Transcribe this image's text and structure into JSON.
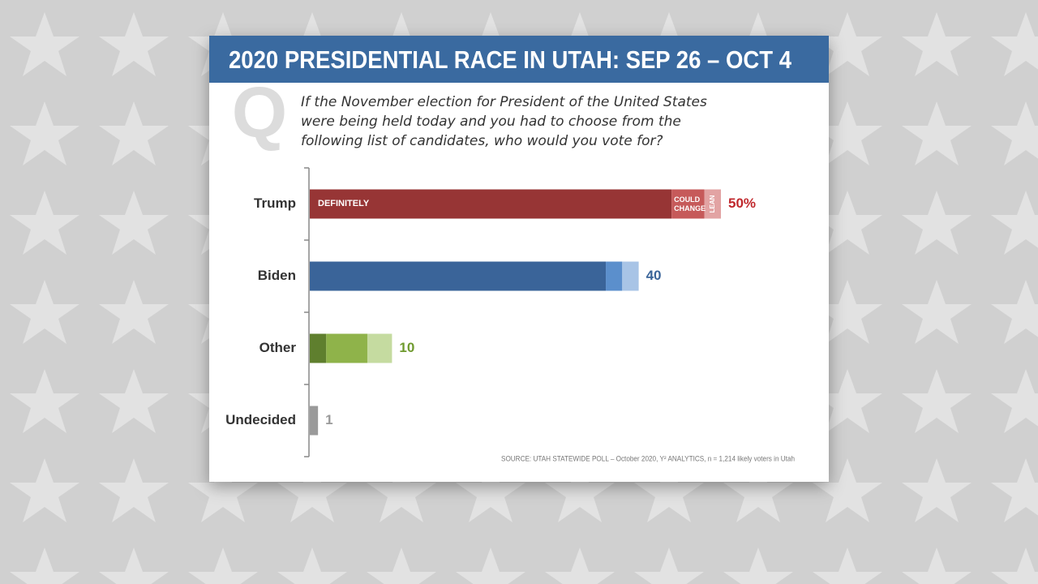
{
  "chart_data": {
    "type": "stacked-bar-horizontal",
    "title": "2020 PRESIDENTIAL RACE IN UTAH: SEP 26 – OCT 4",
    "q_icon": "Q",
    "question": "If the November election for President of the United States were being held today and you had to choose from the following list of candidates, who would you vote for?",
    "source": "SOURCE: UTAH STATEWIDE POLL – October 2020, Y² ANALYTICS, n = 1,214 likely voters in Utah",
    "categories": [
      "Trump",
      "Biden",
      "Other",
      "Undecided"
    ],
    "series": [
      {
        "name": "DEFINITELY",
        "colors": [
          "#973535",
          "#3a6499",
          "#5f7f2e",
          "#9a9a9a"
        ],
        "values": [
          44,
          36,
          2,
          1
        ]
      },
      {
        "name": "COULD CHANGE",
        "colors": [
          "#c65a5a",
          "#5b8fcc",
          "#8fb34a",
          "#bbbbbb"
        ],
        "values": [
          4,
          2,
          5,
          null
        ]
      },
      {
        "name": "LEAN",
        "colors": [
          "#e2a3a3",
          "#a8c4e6",
          "#c5dba0",
          "#dddddd"
        ],
        "values": [
          2,
          2,
          3,
          null
        ]
      }
    ],
    "totals": [
      50,
      40,
      10,
      1
    ],
    "total_labels": [
      "50%",
      "40",
      "10",
      "1"
    ],
    "total_label_colors": [
      "#c0282d",
      "#3a6499",
      "#6f9a2e",
      "#9a9a9a"
    ],
    "xlim": [
      0,
      50
    ]
  }
}
